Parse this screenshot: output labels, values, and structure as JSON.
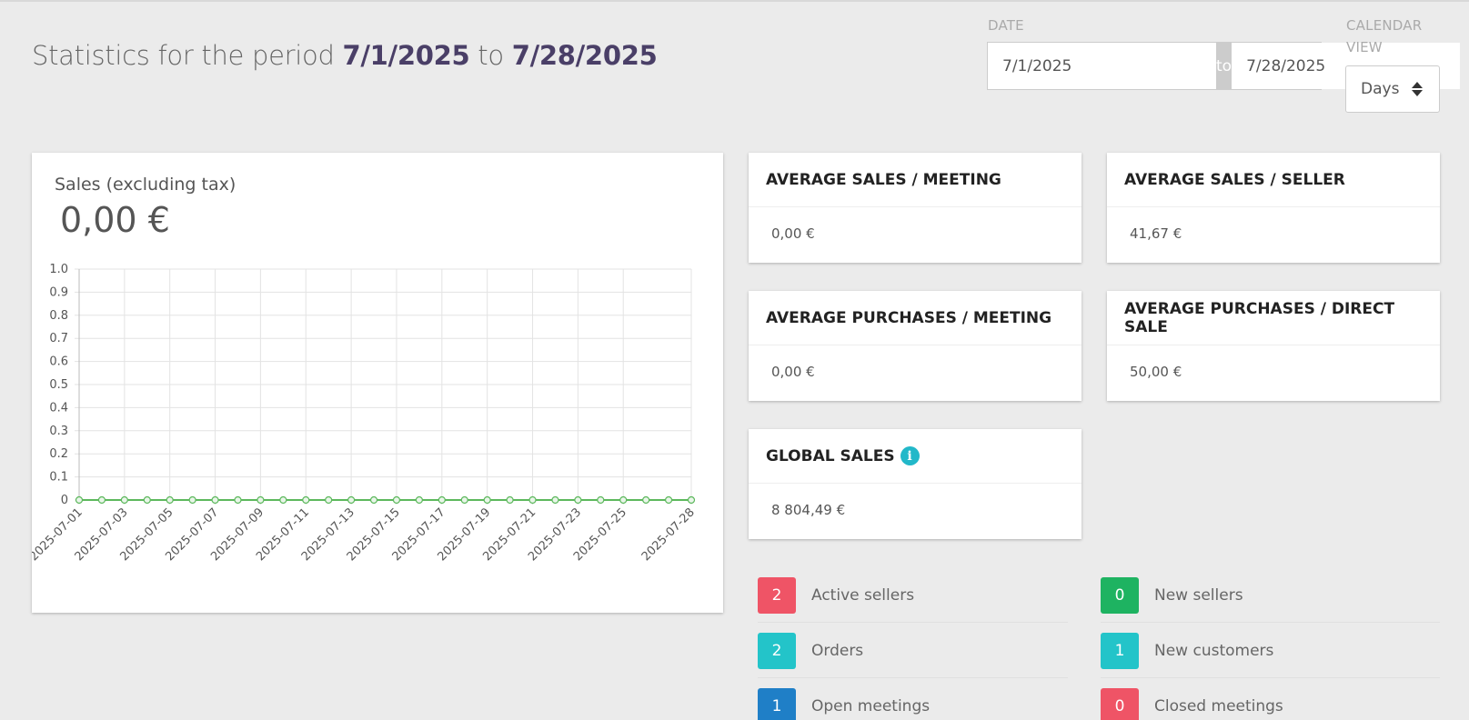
{
  "header": {
    "title_prefix": "Statistics for the period",
    "start_date": "7/1/2025",
    "connector": "to",
    "end_date": "7/28/2025"
  },
  "filters": {
    "date_label": "DATE",
    "start_value": "7/1/2025",
    "to_label": "to",
    "end_value": "7/28/2025",
    "calendar_label_line1": "CALENDAR",
    "calendar_label_line2": "VIEW",
    "calendar_view": "Days"
  },
  "sales_card": {
    "title": "Sales (excluding tax)",
    "value": "0,00 €"
  },
  "chart_data": {
    "type": "line",
    "x": [
      "2025-07-01",
      "2025-07-02",
      "2025-07-03",
      "2025-07-04",
      "2025-07-05",
      "2025-07-06",
      "2025-07-07",
      "2025-07-08",
      "2025-07-09",
      "2025-07-10",
      "2025-07-11",
      "2025-07-12",
      "2025-07-13",
      "2025-07-14",
      "2025-07-15",
      "2025-07-16",
      "2025-07-17",
      "2025-07-18",
      "2025-07-19",
      "2025-07-20",
      "2025-07-21",
      "2025-07-22",
      "2025-07-23",
      "2025-07-24",
      "2025-07-25",
      "2025-07-26",
      "2025-07-27",
      "2025-07-28"
    ],
    "x_tick_labels": [
      "2025-07-01",
      "2025-07-03",
      "2025-07-05",
      "2025-07-07",
      "2025-07-09",
      "2025-07-11",
      "2025-07-13",
      "2025-07-15",
      "2025-07-17",
      "2025-07-19",
      "2025-07-21",
      "2025-07-23",
      "2025-07-25",
      "2025-07-28"
    ],
    "y_tick_labels": [
      "0",
      "0.1",
      "0.2",
      "0.3",
      "0.4",
      "0.5",
      "0.6",
      "0.7",
      "0.8",
      "0.9",
      "1.0"
    ],
    "series": [
      {
        "values": [
          0,
          0,
          0,
          0,
          0,
          0,
          0,
          0,
          0,
          0,
          0,
          0,
          0,
          0,
          0,
          0,
          0,
          0,
          0,
          0,
          0,
          0,
          0,
          0,
          0,
          0,
          0,
          0
        ],
        "color": "#5cb85c"
      }
    ],
    "ylim": [
      0,
      1
    ],
    "grid": true
  },
  "stats": [
    {
      "title": "AVERAGE SALES / MEETING",
      "value": "0,00 €"
    },
    {
      "title": "AVERAGE SALES / SELLER",
      "value": "41,67 €"
    },
    {
      "title": "AVERAGE PURCHASES / MEETING",
      "value": "0,00 €"
    },
    {
      "title": "AVERAGE PURCHASES / DIRECT SALE",
      "value": "50,00 €"
    },
    {
      "title": "GLOBAL SALES",
      "value": "8 804,49 €",
      "icon": "info-icon"
    }
  ],
  "counters": [
    {
      "count": "2",
      "label": "Active sellers",
      "color": "#ef5466"
    },
    {
      "count": "0",
      "label": "New sellers",
      "color": "#1eb361"
    },
    {
      "count": "2",
      "label": "Orders",
      "color": "#23c4c9"
    },
    {
      "count": "1",
      "label": "New customers",
      "color": "#23c4c9"
    },
    {
      "count": "1",
      "label": "Open meetings",
      "color": "#1f7fc7"
    },
    {
      "count": "0",
      "label": "Closed meetings",
      "color": "#ef5466"
    }
  ]
}
